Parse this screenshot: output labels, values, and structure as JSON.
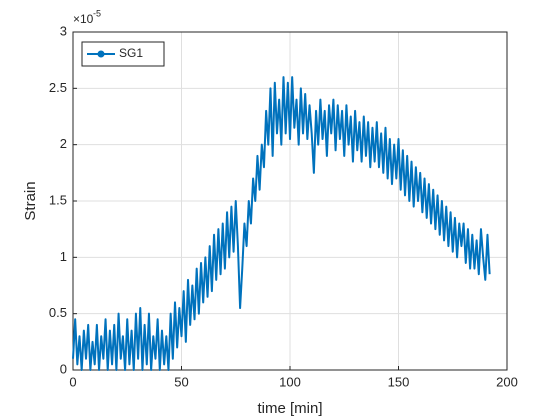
{
  "chart_data": {
    "type": "line",
    "xlabel": "time [min]",
    "ylabel": "Strain",
    "y_multiplier": {
      "base": "×10",
      "exponent": "-5"
    },
    "xlim": [
      0,
      200
    ],
    "xticks": [
      0,
      50,
      100,
      150,
      200
    ],
    "ylim": [
      0,
      3
    ],
    "yticks": [
      0,
      0.5,
      1,
      1.5,
      2,
      2.5,
      3
    ],
    "grid": true,
    "legend_position": "upper-left",
    "x": [
      0,
      1,
      2,
      3,
      4,
      5,
      6,
      7,
      8,
      9,
      10,
      11,
      12,
      13,
      14,
      15,
      16,
      17,
      18,
      19,
      20,
      21,
      22,
      23,
      24,
      25,
      26,
      27,
      28,
      29,
      30,
      31,
      32,
      33,
      34,
      35,
      36,
      37,
      38,
      39,
      40,
      41,
      42,
      43,
      44,
      45,
      46,
      47,
      48,
      49,
      50,
      51,
      52,
      53,
      54,
      55,
      56,
      57,
      58,
      59,
      60,
      61,
      62,
      63,
      64,
      65,
      66,
      67,
      68,
      69,
      70,
      71,
      72,
      73,
      74,
      75,
      76,
      77,
      78,
      79,
      80,
      81,
      82,
      83,
      84,
      85,
      86,
      87,
      88,
      89,
      90,
      91,
      92,
      93,
      94,
      95,
      96,
      97,
      98,
      99,
      100,
      101,
      102,
      103,
      104,
      105,
      106,
      107,
      108,
      109,
      110,
      111,
      112,
      113,
      114,
      115,
      116,
      117,
      118,
      119,
      120,
      121,
      122,
      123,
      124,
      125,
      126,
      127,
      128,
      129,
      130,
      131,
      132,
      133,
      134,
      135,
      136,
      137,
      138,
      139,
      140,
      141,
      142,
      143,
      144,
      145,
      146,
      147,
      148,
      149,
      150,
      151,
      152,
      153,
      154,
      155,
      156,
      157,
      158,
      159,
      160,
      161,
      162,
      163,
      164,
      165,
      166,
      167,
      168,
      169,
      170,
      171,
      172,
      173,
      174,
      175,
      176,
      177,
      178,
      179,
      180,
      181,
      182,
      183,
      184,
      185,
      186,
      187,
      188,
      189,
      190,
      191,
      192
    ],
    "series": [
      {
        "name": "SG1",
        "color": "#0072bd",
        "values": [
          0.1,
          0.45,
          0.05,
          0.3,
          0,
          0.35,
          0.1,
          0.4,
          0,
          0.25,
          0.05,
          0.4,
          0,
          0.3,
          0.1,
          0.45,
          0,
          0.35,
          0.05,
          0.4,
          0,
          0.5,
          0.1,
          0.3,
          0,
          0.45,
          0.05,
          0.35,
          0,
          0.5,
          0.1,
          0.55,
          0,
          0.4,
          0.05,
          0.5,
          0,
          0.3,
          0.1,
          0.45,
          0,
          0.35,
          0.05,
          0.3,
          0,
          0.5,
          0.1,
          0.6,
          0.2,
          0.55,
          0.3,
          0.7,
          0.25,
          0.8,
          0.4,
          0.75,
          0.45,
          0.9,
          0.5,
          0.95,
          0.6,
          1.0,
          0.65,
          1.1,
          0.7,
          1.2,
          0.8,
          1.25,
          0.85,
          1.3,
          0.9,
          1.4,
          1.0,
          1.45,
          1.05,
          1.5,
          1.1,
          0.55,
          0.9,
          1.3,
          1.1,
          1.5,
          1.3,
          1.7,
          1.5,
          1.9,
          1.6,
          2.0,
          1.8,
          2.3,
          2.0,
          2.5,
          1.9,
          2.55,
          2.1,
          2.4,
          2.0,
          2.6,
          2.1,
          2.55,
          2.05,
          2.6,
          2.15,
          2.4,
          2.0,
          2.5,
          2.1,
          2.45,
          2.05,
          2.35,
          2.1,
          1.75,
          2.3,
          2.0,
          2.4,
          2.05,
          2.3,
          1.9,
          2.35,
          2.1,
          2.4,
          1.95,
          2.35,
          2.05,
          2.3,
          1.9,
          2.35,
          2.0,
          2.25,
          1.85,
          2.3,
          1.95,
          2.2,
          1.85,
          2.25,
          1.9,
          2.2,
          1.8,
          2.15,
          1.85,
          2.2,
          1.8,
          2.1,
          1.75,
          2.15,
          1.7,
          2.05,
          1.65,
          2.0,
          1.7,
          2.05,
          1.6,
          1.95,
          1.55,
          1.9,
          1.5,
          1.85,
          1.45,
          1.8,
          1.5,
          1.75,
          1.4,
          1.7,
          1.35,
          1.65,
          1.3,
          1.6,
          1.25,
          1.55,
          1.2,
          1.5,
          1.15,
          1.45,
          1.1,
          1.4,
          1.05,
          1.35,
          1.0,
          1.3,
          1.1,
          1.3,
          0.95,
          1.25,
          0.9,
          1.2,
          0.9,
          1.15,
          0.85,
          1.25,
          1.0,
          0.8,
          1.2,
          0.85
        ]
      }
    ]
  }
}
